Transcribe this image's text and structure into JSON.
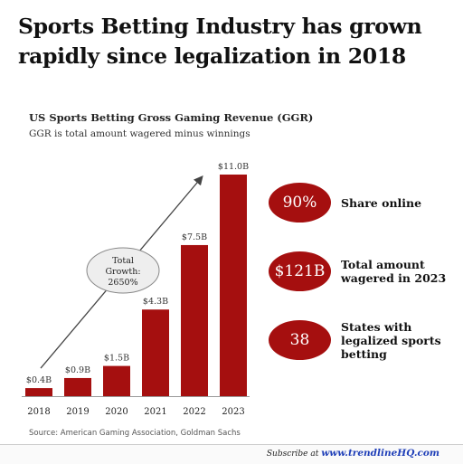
{
  "headline": "Sports Betting Industry has grown rapidly since legalization in 2018",
  "chart_data": {
    "type": "bar",
    "title": "US Sports Betting Gross Gaming Revenue (GGR)",
    "subtitle": "GGR is total amount wagered minus winnings",
    "categories": [
      "2018",
      "2019",
      "2020",
      "2021",
      "2022",
      "2023"
    ],
    "values": [
      0.4,
      0.9,
      1.5,
      4.3,
      7.5,
      11.0
    ],
    "value_labels": [
      "$0.4B",
      "$0.9B",
      "$1.5B",
      "$4.3B",
      "$7.5B",
      "$11.0B"
    ],
    "unit": "billion USD",
    "ylim": [
      0,
      11.0
    ],
    "grid": false,
    "bar_color": "#a50f0f",
    "annotation": {
      "lines": [
        "Total",
        "Growth:",
        "2650%"
      ],
      "arrow": {
        "from": "2018",
        "to": "2023"
      }
    }
  },
  "stats": [
    {
      "value": "90%",
      "label": "Share online"
    },
    {
      "value": "$121B",
      "label": "Total amount wagered in 2023"
    },
    {
      "value": "38",
      "label": "States with legalized sports betting"
    }
  ],
  "source": "Source: American Gaming Association, Goldman Sachs",
  "footer": {
    "prefix": "Subscribe at",
    "link": "www.trendlineHQ.com"
  },
  "colors": {
    "accent": "#a50f0f",
    "link": "#1f3fb8"
  }
}
